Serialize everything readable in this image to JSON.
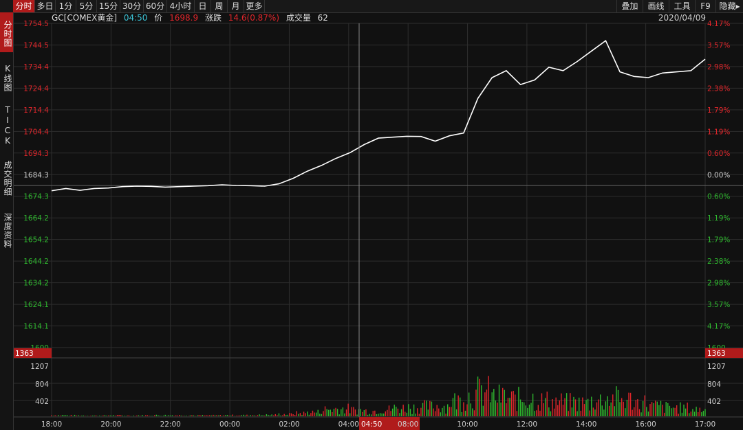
{
  "toolbar": {
    "left_tabs": [
      "分时",
      "多日",
      "1分",
      "5分",
      "15分",
      "30分",
      "60分",
      "4小时",
      "日",
      "周",
      "月",
      "更多"
    ],
    "active_tab": 0,
    "right_tabs": [
      "叠加",
      "画线",
      "工具",
      "F9",
      "隐藏▸"
    ]
  },
  "sidebar": {
    "items": [
      "分时图",
      "K线图",
      "TICK",
      "成交明细",
      "深度资料"
    ],
    "active": 0
  },
  "info": {
    "symbol": "GC[COMEX黄金]",
    "time": "04:50",
    "price_label": "价",
    "price": "1698.9",
    "change_label": "涨跌",
    "change": "14.6(0.87%)",
    "volume_label": "成交量",
    "volume": "62"
  },
  "date": "2020/04/09",
  "price_axis": {
    "left_labels": [
      "1754.5",
      "1744.5",
      "1734.4",
      "1724.4",
      "1714.4",
      "1704.4",
      "1694.3",
      "1684.3",
      "1674.3",
      "1664.2",
      "1654.2",
      "1644.2",
      "1634.2",
      "1624.1",
      "1614.1",
      "1600"
    ],
    "right_labels": [
      "4.17%",
      "3.57%",
      "2.98%",
      "2.38%",
      "1.79%",
      "1.19%",
      "0.60%",
      "0.00%",
      "0.60%",
      "1.19%",
      "1.79%",
      "2.38%",
      "2.98%",
      "3.57%",
      "4.17%",
      "1600"
    ],
    "prev_close": 1684.3,
    "max": 1754.5,
    "min": 1614.1
  },
  "volume_axis": {
    "badge": "1363",
    "labels": [
      "1207",
      "804",
      "402"
    ],
    "max": 1363
  },
  "time_axis": {
    "labels": [
      "18:00",
      "20:00",
      "22:00",
      "00:00",
      "02:00",
      "04:00",
      "04:50",
      "08:00",
      "10:00",
      "12:00",
      "14:00",
      "16:00",
      "17:00"
    ],
    "cursor_label": "04:50"
  },
  "colors": {
    "up": "#e0262b",
    "down": "#2fb82f",
    "line": "#ffffff",
    "accent": "#b01b1b",
    "grid": "#2e2e2e"
  },
  "chart_data": {
    "type": "line",
    "title": "",
    "xlabel": "",
    "ylabel": "",
    "x": [
      "18:00",
      "18:30",
      "19:00",
      "19:30",
      "20:00",
      "20:30",
      "21:00",
      "21:30",
      "22:00",
      "22:30",
      "23:00",
      "23:30",
      "00:00",
      "00:30",
      "01:00",
      "01:30",
      "02:00",
      "02:30",
      "03:00",
      "03:30",
      "04:00",
      "04:30",
      "05:00",
      "05:30",
      "06:00",
      "06:30",
      "07:00",
      "07:30",
      "08:00",
      "08:30",
      "09:00",
      "09:30",
      "10:00",
      "10:30",
      "11:00",
      "11:30",
      "12:00",
      "12:30",
      "13:00",
      "13:30",
      "14:00",
      "14:30",
      "15:00",
      "15:30",
      "16:00",
      "16:30",
      "17:00"
    ],
    "series": [
      {
        "values": [
          1682.0,
          1683.0,
          1682.2,
          1683.0,
          1683.2,
          1683.8,
          1684.0,
          1683.9,
          1683.6,
          1683.8,
          1684.0,
          1684.2,
          1684.6,
          1684.3,
          1684.2,
          1684.0,
          1685.0,
          1687.4,
          1690.5,
          1693.0,
          1696.0,
          1698.5,
          1702.0,
          1704.8,
          1705.2,
          1705.6,
          1705.5,
          1703.5,
          1705.8,
          1707.0,
          1722.0,
          1731.0,
          1734.0,
          1728.0,
          1730.0,
          1735.5,
          1734.0,
          1738.0,
          1742.5,
          1747.0,
          1733.5,
          1731.5,
          1731.0,
          1733.0,
          1733.5,
          1734.0,
          1739.0
        ]
      }
    ],
    "volume": [
      30,
      25,
      20,
      20,
      25,
      20,
      25,
      30,
      30,
      30,
      25,
      25,
      30,
      30,
      35,
      40,
      60,
      90,
      120,
      200,
      220,
      180,
      160,
      200,
      240,
      260,
      280,
      300,
      450,
      600,
      700,
      560,
      500,
      520,
      450,
      420,
      400,
      380,
      460,
      520,
      480,
      400,
      300,
      260,
      240,
      200,
      180
    ],
    "ylim": [
      1614.1,
      1754.5
    ]
  }
}
